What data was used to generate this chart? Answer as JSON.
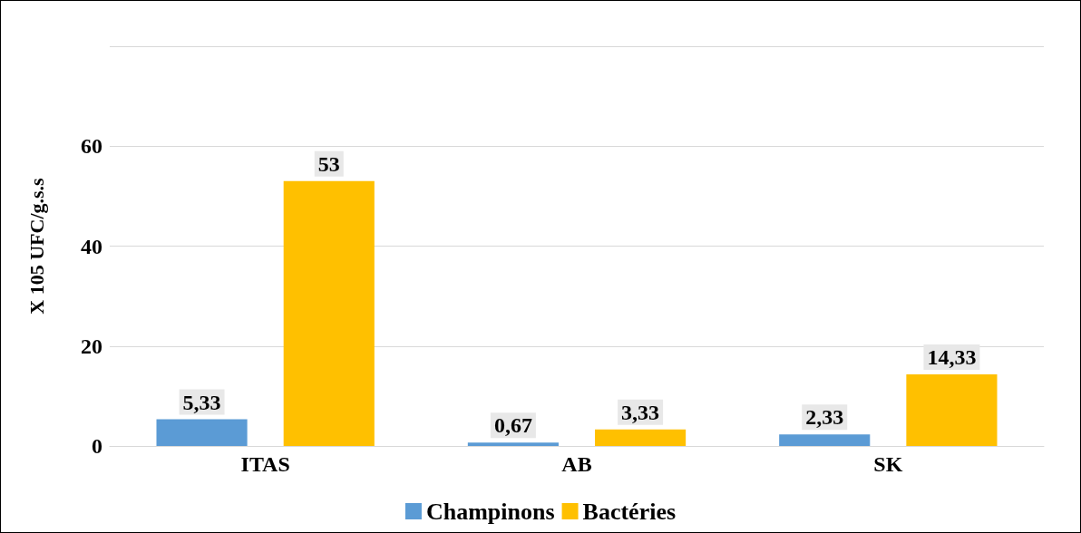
{
  "chart_data": {
    "type": "bar",
    "ylabel": "X 105 UFC/g.s.s",
    "categories": [
      "ITAS",
      "AB",
      "SK"
    ],
    "series": [
      {
        "name": "Champinons",
        "color": "#5b9bd5",
        "values": [
          5.33,
          0.67,
          2.33
        ],
        "value_labels": [
          "5,33",
          "0,67",
          "2,33"
        ]
      },
      {
        "name": "Bactéries",
        "color": "#ffc000",
        "values": [
          53,
          3.33,
          14.33
        ],
        "value_labels": [
          "53",
          "3,33",
          "14,33"
        ]
      }
    ],
    "ylim": [
      0,
      80
    ],
    "yticks": [
      0,
      20,
      40,
      60,
      {
        "value": 80,
        "label": null
      }
    ],
    "grid": "y",
    "legend": "bottom"
  }
}
